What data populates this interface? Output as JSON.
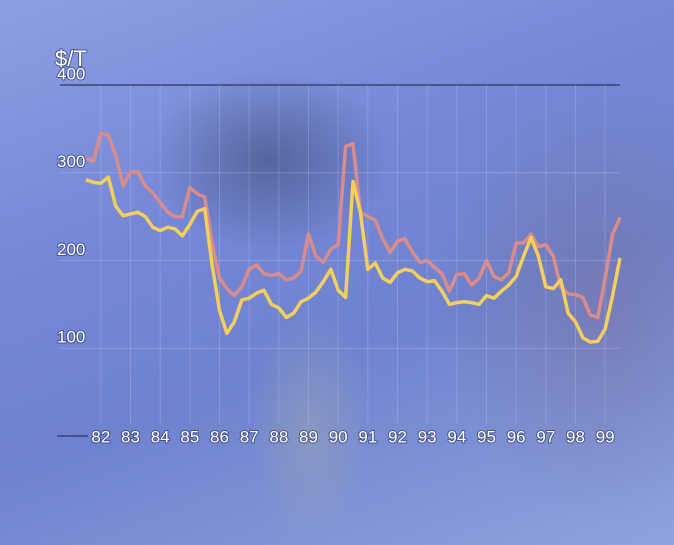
{
  "chart_data": {
    "type": "line",
    "ylabel": "$/T",
    "x": [
      81.5,
      81.75,
      82,
      82.25,
      82.5,
      82.75,
      83,
      83.25,
      83.5,
      83.75,
      84,
      84.25,
      84.5,
      84.75,
      85,
      85.25,
      85.5,
      85.75,
      86,
      86.25,
      86.5,
      86.75,
      87,
      87.25,
      87.5,
      87.75,
      88,
      88.25,
      88.5,
      88.75,
      89,
      89.25,
      89.5,
      89.75,
      90,
      90.25,
      90.5,
      90.75,
      91,
      91.25,
      91.5,
      91.75,
      92,
      92.25,
      92.5,
      92.75,
      93,
      93.25,
      93.5,
      93.75,
      94,
      94.25,
      94.5,
      94.75,
      95,
      95.25,
      95.5,
      95.75,
      96,
      96.25,
      96.5,
      96.75,
      97,
      97.25,
      97.5,
      97.75,
      98,
      98.25,
      98.5,
      98.75,
      99,
      99.25,
      99.5
    ],
    "series": [
      {
        "color": "#d98c8c",
        "values": [
          317,
          313,
          345,
          343,
          320,
          285,
          301,
          301,
          285,
          277,
          266,
          255,
          250,
          250,
          283,
          276,
          272,
          220,
          180,
          168,
          160,
          170,
          190,
          195,
          185,
          183,
          185,
          178,
          180,
          188,
          230,
          205,
          198,
          213,
          218,
          330,
          333,
          255,
          250,
          246,
          225,
          209,
          222,
          225,
          210,
          198,
          200,
          192,
          185,
          165,
          184,
          185,
          172,
          180,
          200,
          182,
          178,
          186,
          220,
          220,
          230,
          216,
          218,
          205,
          170,
          162,
          161,
          158,
          138,
          135,
          180,
          230,
          249
        ]
      },
      {
        "color": "#f3cf5c",
        "values": [
          292,
          289,
          288,
          295,
          262,
          251,
          253,
          255,
          250,
          238,
          234,
          238,
          236,
          228,
          241,
          256,
          259,
          195,
          143,
          117,
          130,
          155,
          157,
          163,
          166,
          150,
          146,
          135,
          140,
          153,
          157,
          164,
          176,
          190,
          166,
          158,
          290,
          255,
          190,
          197,
          180,
          175,
          186,
          190,
          188,
          180,
          176,
          177,
          165,
          150,
          152,
          153,
          152,
          150,
          160,
          157,
          165,
          172,
          182,
          205,
          226,
          205,
          170,
          168,
          178,
          140,
          130,
          112,
          107,
          108,
          122,
          160,
          203
        ]
      }
    ],
    "xlim": [
      81.5,
      99.5
    ],
    "xticks": [
      82,
      83,
      84,
      85,
      86,
      87,
      88,
      89,
      90,
      91,
      92,
      93,
      94,
      95,
      96,
      97,
      98,
      99
    ],
    "ylim": [
      0,
      400
    ],
    "yticks": [
      100,
      200,
      300,
      400
    ],
    "grid": true
  }
}
